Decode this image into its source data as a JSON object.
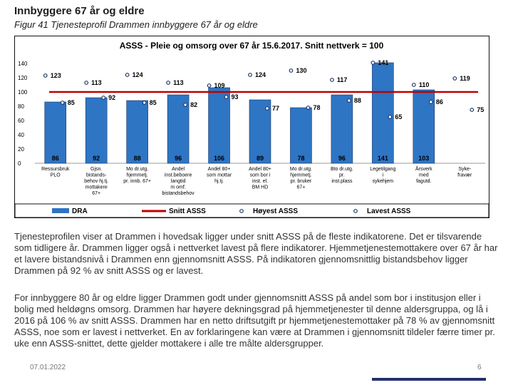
{
  "page": {
    "heading": "Innbyggere 67 år og eldre",
    "figure_caption": "Figur 41 Tjenesteprofil Drammen innbyggere 67 år og eldre",
    "paragraph_1": "Tjenesteprofilen viser at Drammen i hovedsak ligger under snitt ASSS på de fleste indikatorene. Det er tilsvarende som tidligere år. Drammen ligger også i nettverket lavest på flere indikatorer. Hjemmetjenestemottakere over 67 år har et lavere bistandsnivå i Drammen enn gjennomsnitt ASSS. På indikatoren gjennomsnittlig bistandsbehov ligger Drammen på 92 % av snitt ASSS og er lavest.",
    "paragraph_2": "For innbyggere 80 år og eldre ligger Drammen godt under gjennomsnitt ASSS på andel som bor i institusjon eller i bolig med heldøgns omsorg. Drammen har høyere dekningsgrad på hjemmetjenester til denne aldersgruppa, og lå i 2016 på 106 % av snitt ASSS. Drammen har en netto driftsutgift pr hjemmetjenestemottaker på 78 % av gjennomsnitt ASSS, noe som er lavest i nettverket. En av forklaringene kan være at Drammen i gjennomsnitt tildeler færre timer pr. uke enn ASSS-snittet, dette gjelder mottakere i alle tre målte aldersgrupper.",
    "footer_date": "07.01.2022",
    "page_number": "6"
  },
  "chart_data": {
    "type": "bar",
    "title": "ASSS - Pleie og omsorg over 67 år 15.6.2017.   Snitt nettverk = 100",
    "categories": [
      [
        "Ressursbruk",
        "PLO"
      ],
      [
        "Gjsn.",
        "bistands-",
        "behov hj.tj.",
        "mottakere",
        "67+"
      ],
      [
        "Mo dr.utg.",
        "hjemmetj.",
        "pr. innb. 67+"
      ],
      [
        "Andel",
        "inst.beboere",
        "langtid",
        "m omf.",
        "bistandsbehov"
      ],
      [
        "Andel 80+",
        "som mottar",
        "hj.tj."
      ],
      [
        "Andel 80+",
        "som bor i",
        "inst. el.",
        "BM HD"
      ],
      [
        "Mo dr.utg.",
        "hjemmetj.",
        "pr. bruker",
        "67+"
      ],
      [
        "Bto dr.utg.",
        "pr.",
        "inst.plass"
      ],
      [
        "Legetilgang",
        "i",
        "sykehjem"
      ],
      [
        "Årsverk",
        "med",
        "fagutd."
      ],
      [
        "Syke-",
        "fravær"
      ]
    ],
    "series": [
      {
        "name": "DRA",
        "kind": "bar",
        "color": "#2e75c4",
        "values": [
          86,
          92,
          88,
          96,
          106,
          89,
          78,
          96,
          141,
          103,
          null
        ],
        "labels": [
          "86",
          "92",
          "88",
          "96",
          "106",
          "89",
          "78",
          "96",
          "141",
          "103",
          ""
        ]
      },
      {
        "name": "Høyest ASSS",
        "kind": "marker",
        "color": "#1f3864",
        "values": [
          123,
          113,
          124,
          113,
          109,
          124,
          130,
          117,
          141,
          110,
          119
        ]
      },
      {
        "name": "Lavest ASSS",
        "kind": "marker",
        "color": "#1f3864",
        "values": [
          85,
          92,
          85,
          82,
          93,
          77,
          78,
          88,
          65,
          86,
          75
        ]
      }
    ],
    "reference_line": {
      "name": "Snitt ASSS",
      "value": 100,
      "color": "#c00000"
    },
    "yticks": [
      0,
      20,
      40,
      60,
      80,
      100,
      120,
      140
    ],
    "ylim": [
      0,
      150
    ],
    "legend": {
      "position": "bottom",
      "labels": [
        "DRA",
        "Snitt ASSS",
        "Høyest ASSS",
        "Lavest ASSS"
      ]
    }
  }
}
